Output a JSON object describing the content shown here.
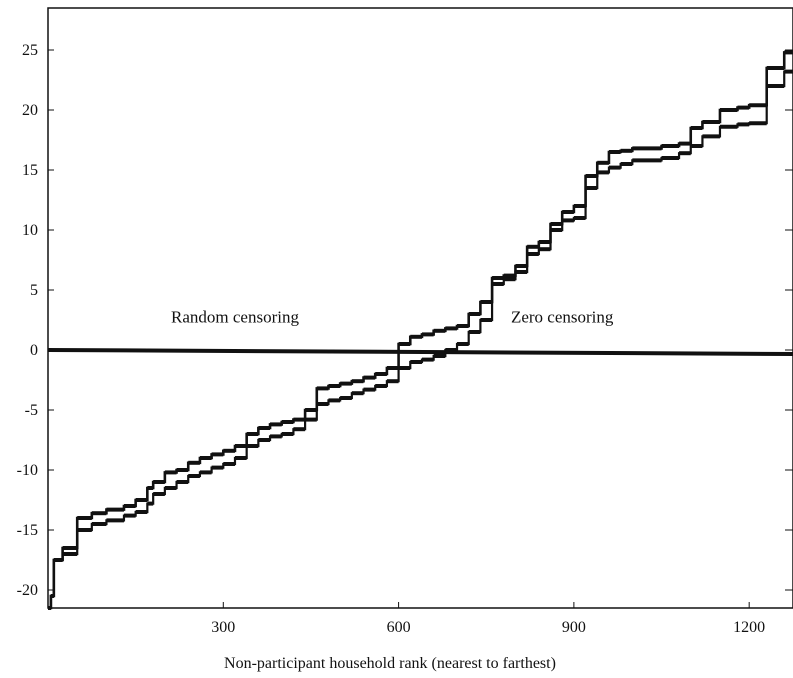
{
  "chart_data": {
    "type": "line",
    "title": "",
    "xlabel": "Non-participant household rank (nearest to farthest)",
    "ylabel": "",
    "xlim": [
      0,
      1275
    ],
    "ylim": [
      -21.5,
      28.5
    ],
    "x_ticks": [
      300,
      600,
      900,
      1200
    ],
    "y_ticks": [
      25,
      20,
      15,
      10,
      5,
      0,
      -5,
      -10,
      -15,
      -20
    ],
    "grid": false,
    "legend": "none",
    "reference_line": {
      "y": 0
    },
    "annotations": [
      {
        "text": "Random censoring",
        "x": 320,
        "y": 2.7
      },
      {
        "text": "Zero censoring",
        "x": 880,
        "y": 2.7
      }
    ],
    "series": [
      {
        "x": [
          0,
          5,
          10,
          25,
          50,
          75,
          100,
          130,
          150,
          170,
          180,
          200,
          220,
          240,
          260,
          280,
          300,
          320,
          340,
          360,
          380,
          400,
          420,
          440,
          460,
          480,
          500,
          520,
          540,
          560,
          580,
          600,
          620,
          640,
          660,
          680,
          700,
          720,
          740,
          760,
          780,
          800,
          820,
          840,
          860,
          880,
          900,
          920,
          940,
          960,
          980,
          1000,
          1050,
          1080,
          1100,
          1120,
          1150,
          1180,
          1200,
          1230,
          1260,
          1275
        ],
        "y": [
          -21.5,
          -20.5,
          -17.5,
          -16.5,
          -14.0,
          -13.6,
          -13.3,
          -13.0,
          -12.5,
          -11.5,
          -11.0,
          -10.2,
          -10.0,
          -9.4,
          -9.0,
          -8.7,
          -8.4,
          -8.0,
          -7.0,
          -6.5,
          -6.2,
          -6.0,
          -5.8,
          -5.0,
          -3.2,
          -3.0,
          -2.8,
          -2.6,
          -2.3,
          -2.0,
          -1.5,
          0.5,
          1.1,
          1.3,
          1.6,
          1.8,
          2.0,
          3.0,
          4.0,
          6.0,
          6.2,
          7.0,
          8.6,
          9.0,
          10.5,
          11.5,
          12.0,
          14.5,
          15.6,
          16.5,
          16.6,
          16.8,
          17.0,
          17.2,
          18.5,
          19.0,
          20.0,
          20.2,
          20.4,
          23.5,
          24.8,
          24.8
        ]
      },
      {
        "x": [
          0,
          5,
          10,
          25,
          50,
          75,
          100,
          130,
          150,
          170,
          180,
          200,
          220,
          240,
          260,
          280,
          300,
          320,
          340,
          360,
          380,
          400,
          420,
          440,
          460,
          480,
          500,
          520,
          540,
          560,
          580,
          600,
          620,
          640,
          660,
          680,
          700,
          720,
          740,
          760,
          780,
          800,
          820,
          840,
          860,
          880,
          900,
          920,
          940,
          960,
          980,
          1000,
          1050,
          1080,
          1100,
          1120,
          1150,
          1180,
          1200,
          1230,
          1260,
          1275
        ],
        "y": [
          -21.5,
          -20.5,
          -17.5,
          -17.0,
          -15.0,
          -14.5,
          -14.2,
          -13.8,
          -13.5,
          -12.8,
          -12.0,
          -11.5,
          -11.0,
          -10.5,
          -10.2,
          -9.8,
          -9.5,
          -9.0,
          -8.0,
          -7.5,
          -7.2,
          -7.0,
          -6.6,
          -5.8,
          -4.5,
          -4.2,
          -4.0,
          -3.6,
          -3.3,
          -3.0,
          -2.6,
          -1.5,
          -1.0,
          -0.8,
          -0.5,
          0.0,
          0.5,
          1.5,
          2.5,
          5.5,
          5.9,
          6.5,
          8.0,
          8.4,
          10.0,
          10.8,
          11.0,
          13.5,
          14.8,
          15.2,
          15.5,
          15.8,
          16.0,
          16.4,
          17.0,
          17.8,
          18.6,
          18.8,
          18.9,
          22.0,
          23.2,
          23.2
        ]
      }
    ]
  }
}
